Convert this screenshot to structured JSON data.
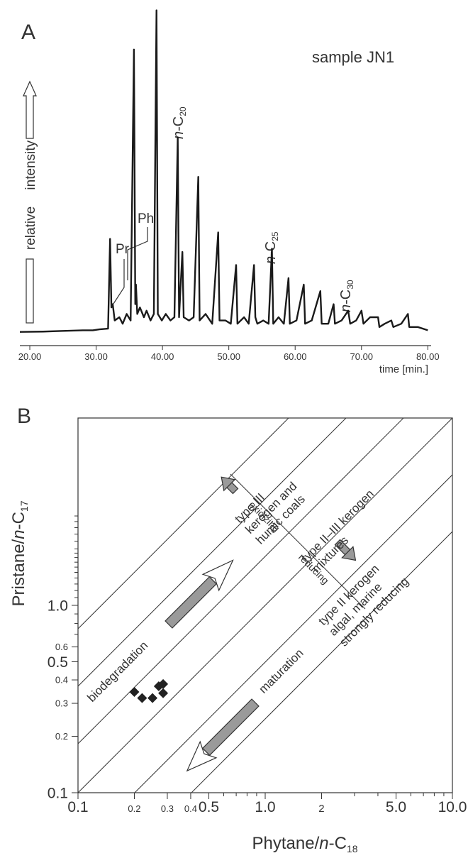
{
  "chart_data": [
    {
      "type": "line",
      "panel_label": "A",
      "title": "sample JN1",
      "y_label": "relative intensity",
      "x_label": "time [min.]",
      "color": "#1a1a1a",
      "x": [
        18.5,
        22,
        25,
        28,
        29.5,
        30.5,
        31.8,
        32.1,
        32.3,
        32.5,
        32.8,
        33.5,
        34,
        34.6,
        35.2,
        35.7,
        35.9,
        36.0,
        36.2,
        36.6,
        37.2,
        37.6,
        38.2,
        38.7,
        39.1,
        39.3,
        39.9,
        40.5,
        41.2,
        41.8,
        42.3,
        42.5,
        43.0,
        43.2,
        44.0,
        44.7,
        45.4,
        45.6,
        46.5,
        47.5,
        48.4,
        48.6,
        49.5,
        50.3,
        51.1,
        51.3,
        52.3,
        53.0,
        53.8,
        54.0,
        54.3,
        55.2,
        56.0,
        56.5,
        56.7,
        57.5,
        58.3,
        59.0,
        59.2,
        60.2,
        61.3,
        61.5,
        62.5,
        63.8,
        64.0,
        65.0,
        65.8,
        66.0,
        67.0,
        68.0,
        68.3,
        69.2,
        70.0,
        70.3,
        71.3,
        72.5,
        72.7,
        73.5,
        74.5,
        74.8,
        76.0,
        77.0,
        77.2,
        78.5,
        80
      ],
      "values": [
        0.5,
        0.6,
        0.8,
        1,
        1,
        1.3,
        1.5,
        29,
        8,
        9,
        4,
        5,
        3,
        6,
        4,
        87,
        9,
        15,
        6,
        8,
        5,
        7,
        4,
        6,
        99,
        6,
        4,
        6,
        4,
        5,
        60,
        5,
        25,
        5,
        4,
        5,
        48,
        4,
        6,
        3,
        31,
        4,
        4,
        3,
        21,
        3,
        5,
        3,
        21,
        5,
        3,
        4,
        3,
        26,
        3,
        5,
        3,
        17,
        3,
        4,
        15,
        3,
        4,
        13,
        3,
        3,
        9,
        3,
        4,
        7,
        3,
        4,
        7,
        3,
        5,
        5,
        2,
        3,
        4,
        2,
        3,
        6,
        2,
        2,
        1
      ],
      "xlim": [
        18.5,
        80.5
      ],
      "ylim": [
        0,
        100
      ],
      "xticks": [
        {
          "value": 20,
          "label": "20.00"
        },
        {
          "value": 30,
          "label": "30.00"
        },
        {
          "value": 40,
          "label": "40.00"
        },
        {
          "value": 50,
          "label": "50.00"
        },
        {
          "value": 60,
          "label": "60.00"
        },
        {
          "value": 70,
          "label": "70.00"
        },
        {
          "value": 80,
          "label": "80.00"
        }
      ],
      "peak_labels": [
        "Pr",
        "Ph",
        {
          "italic": "n",
          "text": "-C",
          "sub": "20"
        },
        {
          "italic": "n",
          "text": "-C",
          "sub": "25"
        },
        {
          "italic": "n",
          "text": "-C",
          "sub": "30"
        }
      ]
    },
    {
      "type": "scatter",
      "panel_label": "B",
      "x_label": {
        "before": "Phytane/",
        "italic": "n",
        "after": "-C",
        "sub": "18"
      },
      "y_label": {
        "before": "Pristane/",
        "italic": "n",
        "after": "-C",
        "sub": "17"
      },
      "color": "#222222",
      "log_x": true,
      "log_y": true,
      "x": [
        0.2,
        0.22,
        0.25,
        0.27,
        0.285,
        0.285
      ],
      "values": [
        0.345,
        0.32,
        0.32,
        0.37,
        0.34,
        0.38
      ],
      "xlim": [
        0.1,
        10
      ],
      "ylim": [
        0.1,
        10
      ],
      "xticks": [
        0.1,
        0.2,
        0.3,
        0.4,
        0.5,
        {
          "value": 1,
          "label": "1.0"
        },
        2,
        {
          "value": 5,
          "label": "5.0"
        },
        {
          "value": 10,
          "label": "10.0"
        }
      ],
      "yticks": [
        0.1,
        0.2,
        0.3,
        0.4,
        0.5,
        0.6,
        {
          "value": 1,
          "label": "1.0"
        }
      ],
      "x_minor_ticks": [
        0.6,
        0.7,
        0.8,
        0.9,
        3,
        4,
        6,
        7,
        8,
        9
      ],
      "y_minor_ticks": [
        0.7,
        0.8,
        0.9,
        1.1,
        1.2,
        1.3,
        1.4,
        1.5,
        1.6,
        1.7,
        1.8,
        1.9,
        2,
        2.2,
        2.4,
        2.6,
        2.8,
        3
      ],
      "regions": [
        [
          "type III",
          "kerogen and",
          "humic coals"
        ],
        [
          "type II–III kerogen",
          "mixtures"
        ],
        [
          "type II kerogen",
          "algal, marine",
          "strongly reducing"
        ]
      ],
      "arrow_labels": [
        "oxidizing",
        "reducing",
        "biodegradation",
        "maturation"
      ]
    }
  ]
}
